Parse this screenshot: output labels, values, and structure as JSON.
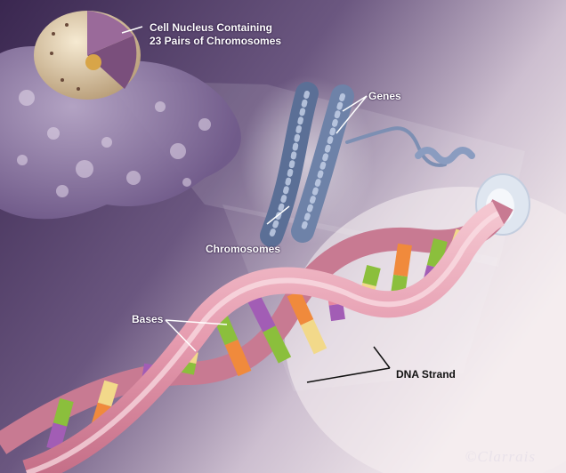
{
  "labels": {
    "nucleus_line1": "Cell Nucleus Containing",
    "nucleus_line2": "23 Pairs of Chromosomes",
    "genes": "Genes",
    "chromosomes": "Chromosomes",
    "bases": "Bases",
    "dna_strand": "DNA Strand"
  },
  "signature": "©Clarrais",
  "colors": {
    "background_dark": "#3a2750",
    "background_light": "#f0e6ea",
    "dna_backbone": "#e6a7b6",
    "chromosome": "#5b6f96",
    "base_purple": "#a25db5",
    "base_green": "#8bbf3c",
    "base_orange": "#f08a3c",
    "base_yellow": "#f2d98a",
    "base_pink": "#e7879f"
  }
}
